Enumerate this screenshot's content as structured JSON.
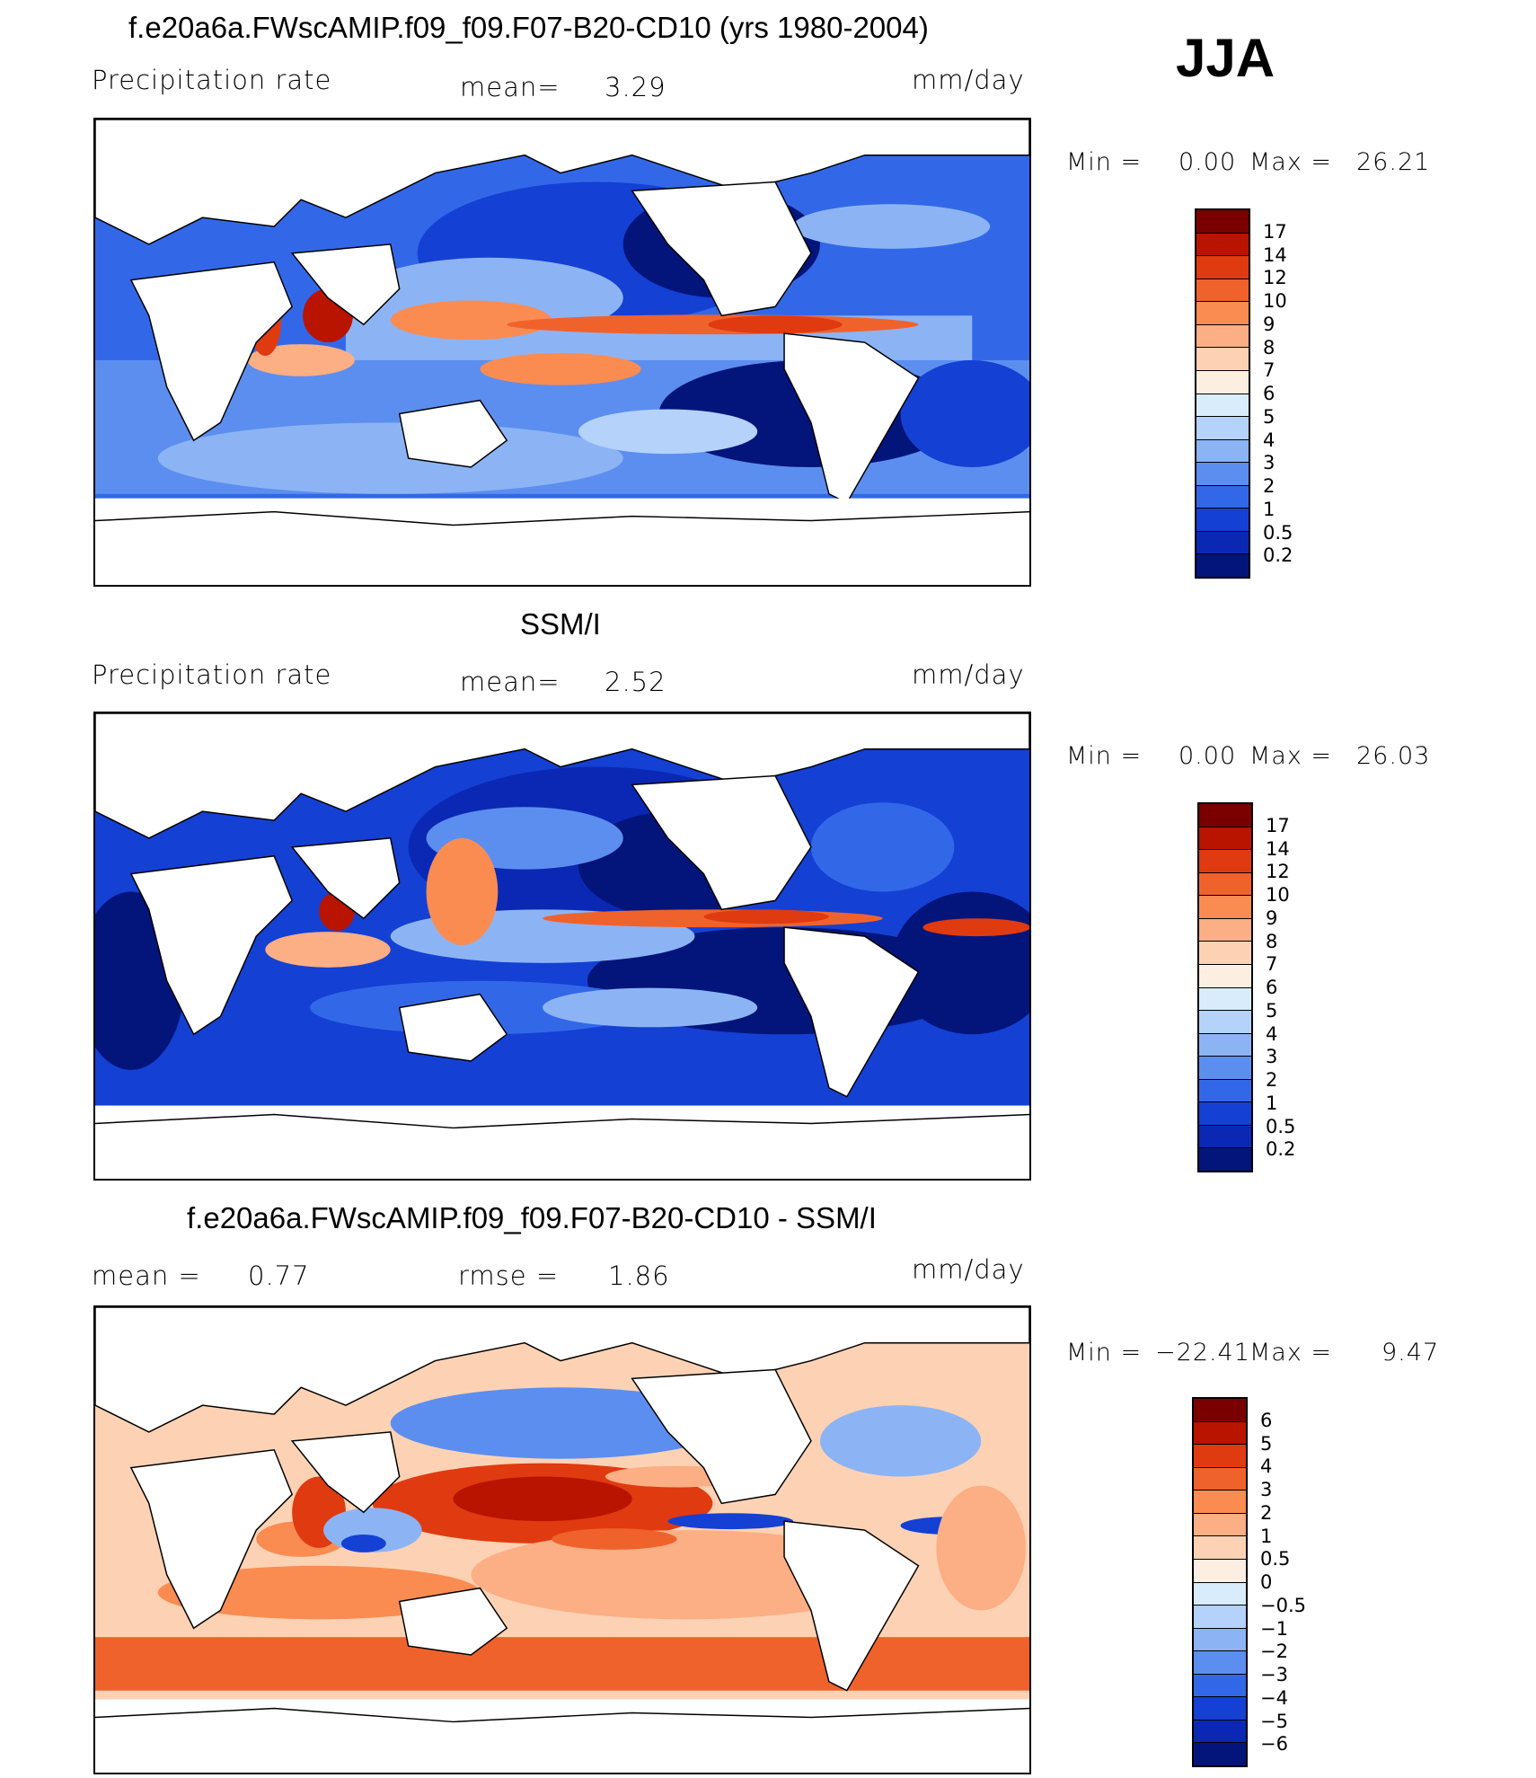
{
  "season": "JJA",
  "panels": [
    {
      "title": "f.e20a6a.FWscAMIP.f09_f09.F07-B20-CD10 (yrs 1980-2004)",
      "left_label": "Precipitation rate",
      "center_label": "mean=",
      "center_value": "3.29",
      "units": "mm/day",
      "min_label": "Min =",
      "min_value": "0.00",
      "max_label": "Max =",
      "max_value": "26.21",
      "colorbar": {
        "labels": [
          "17",
          "14",
          "12",
          "10",
          "9",
          "8",
          "7",
          "6",
          "5",
          "4",
          "3",
          "2",
          "1",
          "0.5",
          "0.2"
        ],
        "colors": [
          "#7a0000",
          "#b81400",
          "#e03a10",
          "#f0622c",
          "#fa8c52",
          "#fcae84",
          "#fdd2b4",
          "#fdeee2",
          "#d8ecfc",
          "#b4d2fa",
          "#8cb4f4",
          "#5c8ef0",
          "#3268e8",
          "#1440d4",
          "#0a28b4",
          "#03157a"
        ]
      }
    },
    {
      "title": "SSM/I",
      "left_label": "Precipitation rate",
      "center_label": "mean=",
      "center_value": "2.52",
      "units": "mm/day",
      "min_label": "Min =",
      "min_value": "0.00",
      "max_label": "Max =",
      "max_value": "26.03",
      "colorbar": {
        "labels": [
          "17",
          "14",
          "12",
          "10",
          "9",
          "8",
          "7",
          "6",
          "5",
          "4",
          "3",
          "2",
          "1",
          "0.5",
          "0.2"
        ],
        "colors": [
          "#7a0000",
          "#b81400",
          "#e03a10",
          "#f0622c",
          "#fa8c52",
          "#fcae84",
          "#fdd2b4",
          "#fdeee2",
          "#d8ecfc",
          "#b4d2fa",
          "#8cb4f4",
          "#5c8ef0",
          "#3268e8",
          "#1440d4",
          "#0a28b4",
          "#03157a"
        ]
      }
    },
    {
      "title": "f.e20a6a.FWscAMIP.f09_f09.F07-B20-CD10 - SSM/I",
      "left_label": "mean =",
      "left_value": "0.77",
      "center_label": "rmse =",
      "center_value": "1.86",
      "units": "mm/day",
      "min_label": "Min =",
      "min_value": "−22.41",
      "max_label": "Max =",
      "max_value": "9.47",
      "colorbar": {
        "labels": [
          "6",
          "5",
          "4",
          "3",
          "2",
          "1",
          "0.5",
          "0",
          "−0.5",
          "−1",
          "−2",
          "−3",
          "−4",
          "−5",
          "−6"
        ],
        "colors": [
          "#7a0000",
          "#b81400",
          "#e03a10",
          "#f0622c",
          "#fa8c52",
          "#fcae84",
          "#fdd2b4",
          "#fdeee2",
          "#d8ecfc",
          "#b4d2fa",
          "#8cb4f4",
          "#5c8ef0",
          "#3268e8",
          "#1440d4",
          "#0a28b4",
          "#03157a"
        ]
      }
    }
  ]
}
